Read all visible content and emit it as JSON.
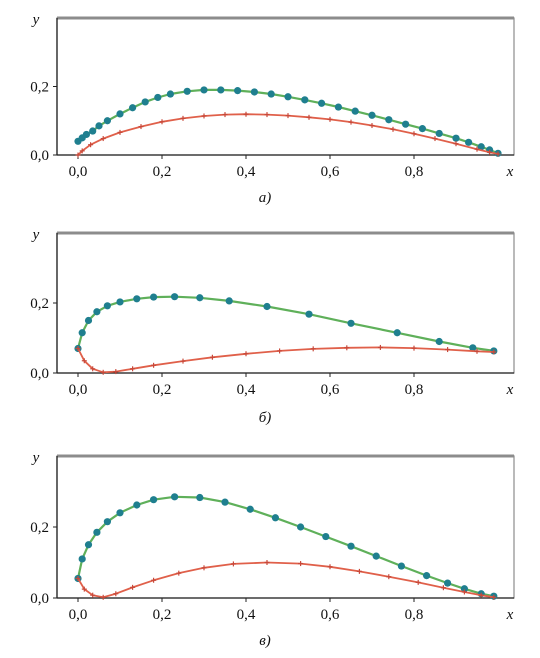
{
  "figure": {
    "captions": [
      "а)",
      "б)",
      "в)"
    ]
  },
  "colors": {
    "upper_line": "#5fb05a",
    "upper_marker": "#1f7f8f",
    "lower_line": "#e0604a",
    "lower_marker": "#c8493a",
    "frame": "#8c8c8c"
  },
  "chart_data": [
    {
      "type": "line",
      "xlabel": "x",
      "ylabel": "y",
      "xlim": [
        -0.05,
        1.02
      ],
      "ylim": [
        0.0,
        0.4
      ],
      "xticks": [
        0.0,
        0.2,
        0.4,
        0.6,
        0.8
      ],
      "xtick_labels": [
        "0,0",
        "0,2",
        "0,4",
        "0,6",
        "0,8"
      ],
      "yticks": [
        0.0,
        0.2
      ],
      "ytick_labels": [
        "0,0",
        "0,2"
      ],
      "caption": "а)",
      "series": [
        {
          "role": "upper surface",
          "marker": "circle",
          "x": [
            0.0,
            0.01,
            0.02,
            0.035,
            0.05,
            0.07,
            0.1,
            0.13,
            0.16,
            0.19,
            0.22,
            0.26,
            0.3,
            0.34,
            0.38,
            0.42,
            0.46,
            0.5,
            0.54,
            0.58,
            0.62,
            0.66,
            0.7,
            0.74,
            0.78,
            0.82,
            0.86,
            0.9,
            0.93,
            0.96,
            0.98,
            1.0
          ],
          "y": [
            0.04,
            0.05,
            0.06,
            0.07,
            0.085,
            0.1,
            0.12,
            0.138,
            0.155,
            0.168,
            0.178,
            0.186,
            0.19,
            0.19,
            0.188,
            0.184,
            0.178,
            0.17,
            0.161,
            0.151,
            0.14,
            0.128,
            0.116,
            0.103,
            0.09,
            0.077,
            0.063,
            0.049,
            0.037,
            0.024,
            0.015,
            0.005
          ]
        },
        {
          "role": "lower surface",
          "marker": "plus",
          "x": [
            0.0,
            0.01,
            0.03,
            0.06,
            0.1,
            0.15,
            0.2,
            0.25,
            0.3,
            0.35,
            0.4,
            0.45,
            0.5,
            0.55,
            0.6,
            0.65,
            0.7,
            0.75,
            0.8,
            0.85,
            0.9,
            0.95,
            0.98,
            1.0
          ],
          "y": [
            0.0,
            0.012,
            0.03,
            0.048,
            0.066,
            0.083,
            0.097,
            0.107,
            0.114,
            0.118,
            0.119,
            0.118,
            0.115,
            0.11,
            0.104,
            0.096,
            0.086,
            0.075,
            0.062,
            0.048,
            0.033,
            0.017,
            0.008,
            0.003
          ]
        }
      ]
    },
    {
      "type": "line",
      "xlabel": "x",
      "ylabel": "y",
      "xlim": [
        -0.05,
        1.02
      ],
      "ylim": [
        0.0,
        0.4
      ],
      "xticks": [
        0.0,
        0.2,
        0.4,
        0.6,
        0.8
      ],
      "xtick_labels": [
        "0,0",
        "0,2",
        "0,4",
        "0,6",
        "0,8"
      ],
      "yticks": [
        0.0,
        0.2
      ],
      "ytick_labels": [
        "0,0",
        "0,2"
      ],
      "caption": "б)",
      "series": [
        {
          "role": "upper surface",
          "marker": "circle",
          "x": [
            0.0,
            0.01,
            0.025,
            0.045,
            0.07,
            0.1,
            0.14,
            0.18,
            0.23,
            0.29,
            0.36,
            0.45,
            0.55,
            0.65,
            0.76,
            0.86,
            0.94,
            0.99
          ],
          "y": [
            0.07,
            0.115,
            0.15,
            0.175,
            0.192,
            0.203,
            0.212,
            0.217,
            0.218,
            0.215,
            0.206,
            0.19,
            0.168,
            0.142,
            0.115,
            0.09,
            0.072,
            0.063
          ]
        },
        {
          "role": "lower surface",
          "marker": "plus",
          "x": [
            0.0,
            0.015,
            0.035,
            0.06,
            0.09,
            0.13,
            0.18,
            0.25,
            0.32,
            0.4,
            0.48,
            0.56,
            0.64,
            0.72,
            0.8,
            0.88,
            0.95,
            0.99
          ],
          "y": [
            0.07,
            0.035,
            0.012,
            0.002,
            0.004,
            0.012,
            0.022,
            0.034,
            0.045,
            0.055,
            0.063,
            0.069,
            0.072,
            0.073,
            0.071,
            0.067,
            0.062,
            0.06
          ]
        }
      ]
    },
    {
      "type": "line",
      "xlabel": "x",
      "ylabel": "y",
      "xlim": [
        -0.05,
        1.02
      ],
      "ylim": [
        0.0,
        0.4
      ],
      "xticks": [
        0.0,
        0.2,
        0.4,
        0.6,
        0.8
      ],
      "xtick_labels": [
        "0,0",
        "0,2",
        "0,4",
        "0,6",
        "0,8"
      ],
      "yticks": [
        0.0,
        0.2
      ],
      "ytick_labels": [
        "0,0",
        "0,2"
      ],
      "caption": "в)",
      "series": [
        {
          "role": "upper surface",
          "marker": "circle",
          "x": [
            0.0,
            0.01,
            0.025,
            0.045,
            0.07,
            0.1,
            0.14,
            0.18,
            0.23,
            0.29,
            0.35,
            0.41,
            0.47,
            0.53,
            0.59,
            0.65,
            0.71,
            0.77,
            0.83,
            0.88,
            0.92,
            0.96,
            0.99
          ],
          "y": [
            0.055,
            0.11,
            0.15,
            0.185,
            0.215,
            0.24,
            0.262,
            0.277,
            0.285,
            0.283,
            0.27,
            0.25,
            0.226,
            0.2,
            0.173,
            0.146,
            0.118,
            0.09,
            0.063,
            0.042,
            0.026,
            0.012,
            0.005
          ]
        },
        {
          "role": "lower surface",
          "marker": "plus",
          "x": [
            0.0,
            0.015,
            0.035,
            0.06,
            0.09,
            0.13,
            0.18,
            0.24,
            0.3,
            0.37,
            0.45,
            0.53,
            0.6,
            0.67,
            0.74,
            0.81,
            0.87,
            0.92,
            0.96,
            0.99
          ],
          "y": [
            0.055,
            0.025,
            0.008,
            0.002,
            0.012,
            0.03,
            0.05,
            0.07,
            0.085,
            0.096,
            0.1,
            0.097,
            0.088,
            0.075,
            0.06,
            0.044,
            0.029,
            0.017,
            0.008,
            0.002
          ]
        }
      ]
    }
  ]
}
